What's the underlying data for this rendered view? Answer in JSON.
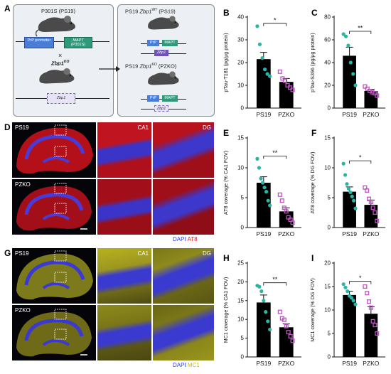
{
  "panels": {
    "a": "A",
    "b": "B",
    "c": "C",
    "d": "D",
    "e": "E",
    "f": "F",
    "g": "G",
    "h": "H",
    "i": "I"
  },
  "schematic": {
    "left_title": "P301S (PS19)",
    "promoter": "PrP promoter",
    "mapt": "MAPT",
    "mapt_sub": "(P301S)",
    "cross": "×",
    "zbp1ko_base": "Zbp1",
    "zbp1ko_sup": "KO",
    "zbp1_box": "Zbp1",
    "right_top_title_pre": "PS19 ",
    "right_top_title_gene": "Zbp1",
    "right_top_title_sup": "WT",
    "right_top_title_post": " (PS19)",
    "right_bottom_title_pre": "PS19 ",
    "right_bottom_title_gene": "Zbp1",
    "right_bottom_title_sup": "KO",
    "right_bottom_title_post": " (PZKO)",
    "small_prp": "PrP",
    "small_mapt": "MAPT",
    "small_zbp1": "Zbp1"
  },
  "micrographs": {
    "d": {
      "row1": "PS19",
      "row2": "PZKO",
      "col1": "CA1",
      "col2": "DG",
      "legend_dapi": "DAPI",
      "legend_stain": "AT8",
      "stain_color": "#e0141e",
      "dapi_color": "#2b3bff"
    },
    "g": {
      "row1": "PS19",
      "row2": "PZKO",
      "col1": "CA1",
      "col2": "DG",
      "legend_dapi": "DAPI",
      "legend_stain": "MC1",
      "stain_color": "#e6dd1e",
      "dapi_color": "#2b3bff"
    }
  },
  "colors": {
    "ps19_point": "#2bb5a5",
    "pzko_point": "#c153c4",
    "bar": "#000000"
  },
  "chart_data": [
    {
      "id": "B",
      "type": "bar",
      "ylabel": "pTau-T181 (pg/μg protein)",
      "categories": [
        "PS19",
        "PZKO"
      ],
      "values": [
        21.5,
        11.5
      ],
      "errors": [
        3.0,
        1.5
      ],
      "points": [
        [
          36,
          28,
          22,
          17,
          15,
          14
        ],
        [
          16,
          13,
          12,
          10,
          9,
          8
        ]
      ],
      "ylim": [
        0,
        40
      ],
      "yticks": [
        "0",
        "10",
        "20",
        "30",
        "40"
      ],
      "significance": "*"
    },
    {
      "id": "C",
      "type": "bar",
      "ylabel": "pTau-S396 (pg/μg protein)",
      "categories": [
        "PS19",
        "PZKO"
      ],
      "values": [
        46,
        15
      ],
      "errors": [
        7.5,
        1.5
      ],
      "points": [
        [
          65,
          63,
          55,
          40,
          30,
          20
        ],
        [
          19,
          17,
          15,
          14,
          13,
          11
        ]
      ],
      "ylim": [
        0,
        80
      ],
      "yticks": [
        "0",
        "20",
        "40",
        "60",
        "80"
      ],
      "significance": "**"
    },
    {
      "id": "E",
      "type": "bar",
      "ylabel": "AT8 coverage (% CA1 FOV)",
      "categories": [
        "PS19",
        "PZKO"
      ],
      "values": [
        7.5,
        2.7
      ],
      "errors": [
        1.0,
        0.6
      ],
      "points": [
        [
          11.5,
          10,
          8.2,
          7.5,
          6.7,
          6,
          4.5,
          3.7
        ],
        [
          5.5,
          4.5,
          3.3,
          2.7,
          1.7,
          1.3,
          0.8
        ]
      ],
      "ylim": [
        0,
        15
      ],
      "yticks": [
        "0",
        "5",
        "10",
        "15"
      ],
      "significance": "**"
    },
    {
      "id": "F",
      "type": "bar",
      "ylabel": "AT8 coverage (% DG FOV)",
      "categories": [
        "PS19",
        "PZKO"
      ],
      "values": [
        6.0,
        3.8
      ],
      "errors": [
        0.8,
        0.8
      ],
      "points": [
        [
          10.7,
          8.8,
          7.3,
          6.5,
          5.9,
          5.2,
          4.5,
          3.2
        ],
        [
          6.7,
          6.2,
          4.8,
          4.3,
          3.3,
          2.5,
          1.1
        ]
      ],
      "ylim": [
        0,
        15
      ],
      "yticks": [
        "0",
        "5",
        "10",
        "15"
      ],
      "significance": "*"
    },
    {
      "id": "H",
      "type": "bar",
      "ylabel": "MC1 coverage (% CA1 FOV)",
      "categories": [
        "PS19",
        "PZKO"
      ],
      "values": [
        14.5,
        7.9
      ],
      "errors": [
        2.0,
        0.9
      ],
      "points": [
        [
          19,
          18.7,
          17.5,
          15,
          12,
          9.5,
          7.3
        ],
        [
          12,
          10.3,
          9.9,
          8.2,
          6.6,
          5.5,
          4.3
        ]
      ],
      "ylim": [
        0,
        25
      ],
      "yticks": [
        "0",
        "5",
        "10",
        "15",
        "20",
        "25"
      ],
      "significance": "**"
    },
    {
      "id": "I",
      "type": "bar",
      "ylabel": "MC1 coverage (% DG FOV)",
      "categories": [
        "PS19",
        "PZKO"
      ],
      "values": [
        13.2,
        9.2
      ],
      "errors": [
        0.8,
        1.5
      ],
      "points": [
        [
          15.5,
          14.8,
          14,
          13,
          12.6,
          12,
          11.2
        ],
        [
          15,
          13.6,
          11.8,
          10.5,
          7.6,
          6.8,
          5
        ]
      ],
      "ylim": [
        0,
        20
      ],
      "yticks": [
        "0",
        "5",
        "10",
        "15",
        "20"
      ],
      "significance": "*"
    }
  ]
}
